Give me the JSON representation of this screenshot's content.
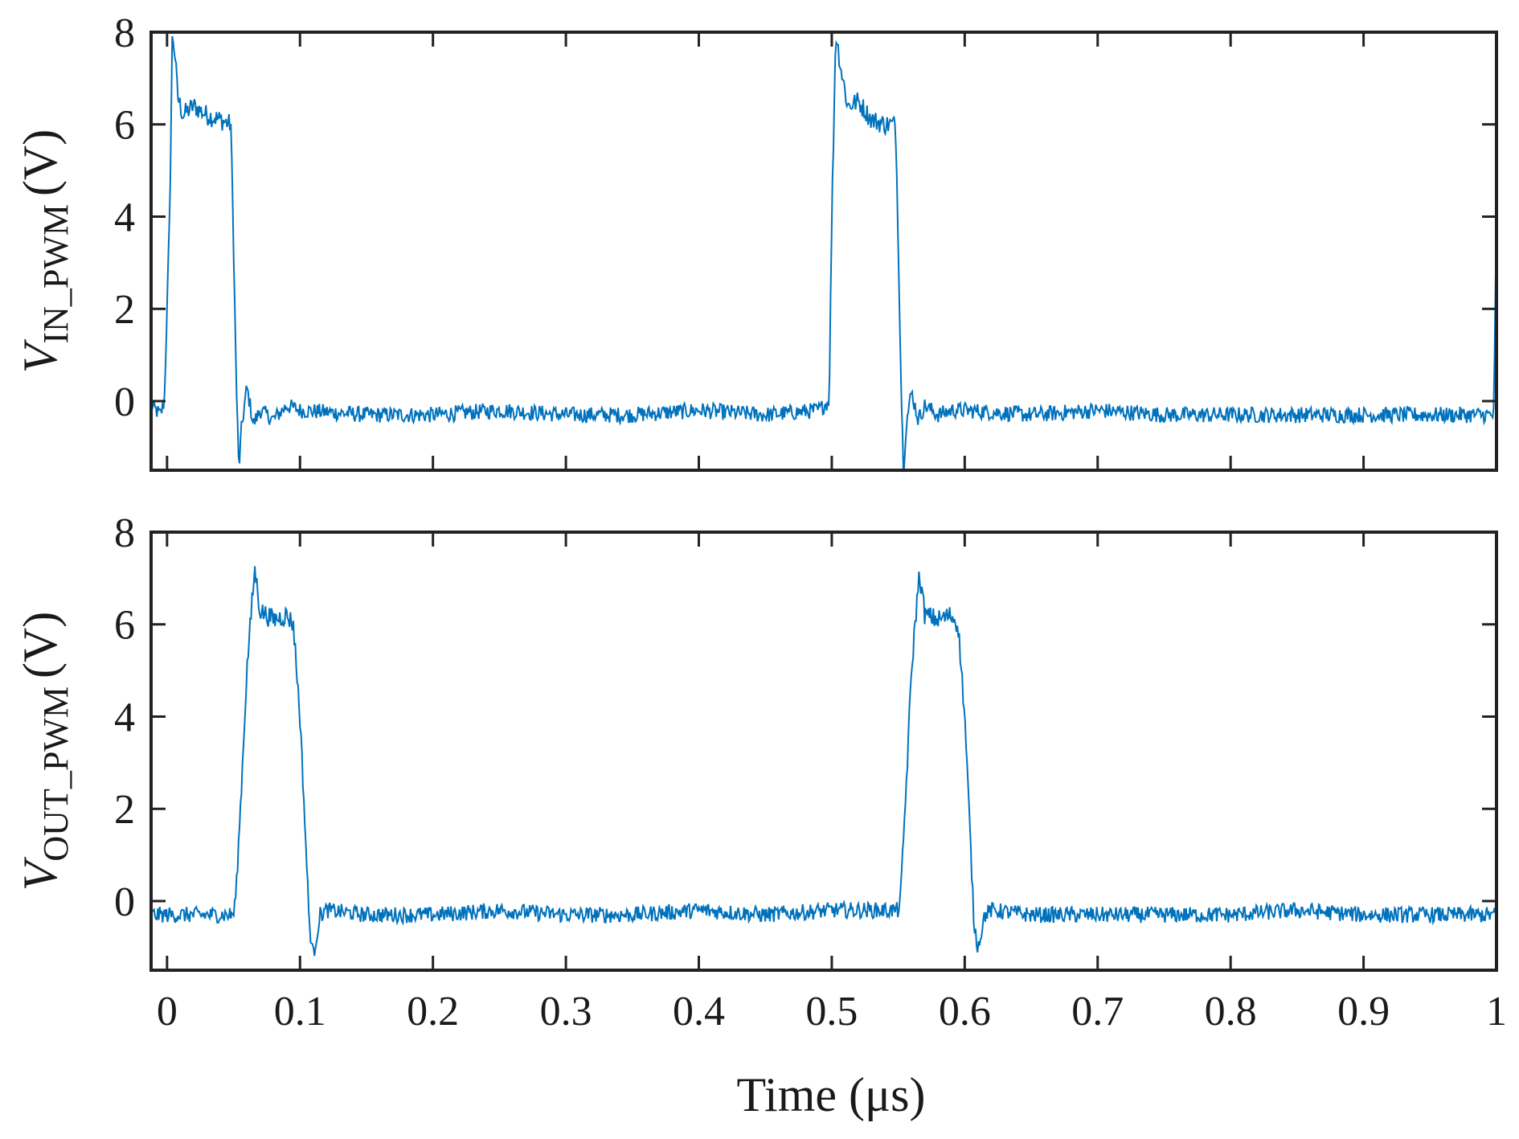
{
  "chart_data": [
    {
      "type": "line",
      "ylabel": {
        "symbol": "V",
        "subscript": "IN_PWM",
        "unit": "(V)"
      },
      "xlabel": "",
      "xlim": [
        -0.012,
        1.0
      ],
      "ylim": [
        -1.5,
        8
      ],
      "yticks": [
        "0",
        "2",
        "4",
        "6",
        "8"
      ],
      "xtick_labels_shown": false,
      "color": "#0072BD",
      "series": [
        {
          "x": [
            -0.012,
            -0.005,
            -0.002,
            0.002,
            0.004,
            0.006,
            0.008,
            0.012,
            0.02,
            0.03,
            0.04,
            0.048,
            0.05,
            0.052,
            0.054,
            0.056,
            0.06,
            0.065,
            0.07,
            0.08,
            0.09,
            0.1,
            0.15,
            0.2,
            0.25,
            0.3,
            0.35,
            0.4,
            0.45,
            0.49,
            0.498,
            0.5,
            0.503,
            0.507,
            0.512,
            0.52,
            0.53,
            0.54,
            0.548,
            0.55,
            0.552,
            0.554,
            0.556,
            0.56,
            0.565,
            0.57,
            0.58,
            0.59,
            0.6,
            0.65,
            0.7,
            0.75,
            0.8,
            0.85,
            0.9,
            0.95,
            0.998,
            1.0
          ],
          "y": [
            -0.1,
            -0.3,
            0.0,
            4.0,
            8.0,
            7.5,
            6.6,
            6.2,
            6.4,
            6.2,
            6.1,
            6.0,
            3.5,
            0.5,
            -1.5,
            -0.6,
            0.3,
            -0.5,
            -0.2,
            -0.4,
            -0.1,
            -0.2,
            -0.3,
            -0.3,
            -0.2,
            -0.3,
            -0.3,
            -0.2,
            -0.3,
            -0.2,
            0.0,
            4.0,
            8.0,
            7.2,
            6.4,
            6.5,
            6.1,
            6.0,
            6.0,
            3.5,
            0.5,
            -1.5,
            -0.5,
            0.2,
            -0.4,
            -0.1,
            -0.3,
            -0.2,
            -0.2,
            -0.3,
            -0.2,
            -0.3,
            -0.3,
            -0.3,
            -0.3,
            -0.3,
            -0.3,
            4.0
          ]
        }
      ]
    },
    {
      "type": "line",
      "ylabel": {
        "symbol": "V",
        "subscript": "OUT_PWM",
        "unit": "(V)"
      },
      "xlabel": "Time (μs)",
      "xlim": [
        -0.012,
        1.0
      ],
      "ylim": [
        -1.5,
        8
      ],
      "yticks": [
        "0",
        "2",
        "4",
        "6",
        "8"
      ],
      "xticks": [
        "0",
        "0.1",
        "0.2",
        "0.3",
        "0.4",
        "0.5",
        "0.6",
        "0.7",
        "0.8",
        "0.9",
        "1"
      ],
      "color": "#0072BD",
      "series": [
        {
          "x": [
            -0.012,
            0.0,
            0.03,
            0.05,
            0.052,
            0.056,
            0.06,
            0.064,
            0.066,
            0.07,
            0.08,
            0.09,
            0.095,
            0.1,
            0.104,
            0.107,
            0.11,
            0.115,
            0.12,
            0.15,
            0.2,
            0.25,
            0.3,
            0.35,
            0.4,
            0.45,
            0.5,
            0.54,
            0.55,
            0.552,
            0.556,
            0.56,
            0.564,
            0.566,
            0.57,
            0.58,
            0.59,
            0.595,
            0.6,
            0.604,
            0.607,
            0.61,
            0.615,
            0.62,
            0.65,
            0.7,
            0.75,
            0.8,
            0.85,
            0.9,
            0.95,
            1.0
          ],
          "y": [
            -0.3,
            -0.3,
            -0.3,
            -0.3,
            0.2,
            2.5,
            5.0,
            6.5,
            7.2,
            6.3,
            6.1,
            6.2,
            6.0,
            4.0,
            1.5,
            -0.5,
            -1.2,
            -0.3,
            -0.2,
            -0.3,
            -0.3,
            -0.2,
            -0.3,
            -0.3,
            -0.2,
            -0.3,
            -0.2,
            -0.2,
            -0.2,
            0.2,
            2.5,
            5.0,
            6.5,
            7.1,
            6.2,
            6.1,
            6.2,
            6.0,
            4.0,
            1.5,
            -0.5,
            -1.0,
            -0.3,
            -0.2,
            -0.3,
            -0.3,
            -0.3,
            -0.3,
            -0.2,
            -0.3,
            -0.3,
            -0.3
          ]
        }
      ]
    }
  ]
}
